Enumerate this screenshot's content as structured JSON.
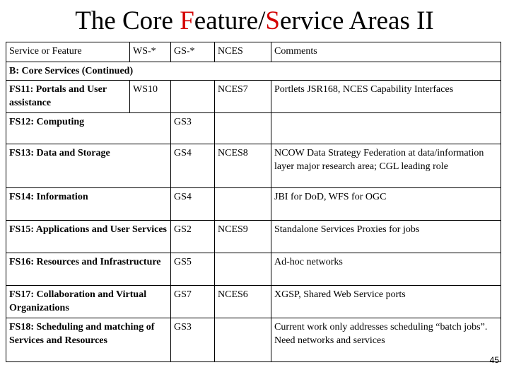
{
  "title": {
    "part1": "The Core ",
    "part2": "F",
    "part3": "eature/",
    "part4": "S",
    "part5": "ervice Areas II"
  },
  "header": {
    "service": "Service or Feature",
    "ws": "WS-*",
    "gs": "GS-*",
    "nces": "NCES",
    "comments": "Comments"
  },
  "section": "B: Core Services (Continued)",
  "rows": [
    {
      "feature": "FS11: Portals and User assistance",
      "ws": "WS10",
      "gs": "",
      "nces": "NCES7",
      "comments": "Portlets JSR168, NCES Capability Interfaces"
    },
    {
      "feature": "FS12: Computing",
      "ws": "",
      "gs": "GS3",
      "nces": "",
      "comments": ""
    },
    {
      "feature": "FS13: Data and  Storage",
      "ws": "",
      "gs": "GS4",
      "nces": "NCES8",
      "comments": "NCOW Data Strategy Federation at data/information layer major research area; CGL leading role"
    },
    {
      "feature": "FS14: Information",
      "ws": "",
      "gs": "GS4",
      "nces": "",
      "comments": "JBI for DoD, WFS for OGC"
    },
    {
      "feature": "FS15: Applications and User Services",
      "ws": "",
      "gs": "GS2",
      "nces": "NCES9",
      "comments": "Standalone  Services Proxies for jobs"
    },
    {
      "feature": "FS16: Resources and Infrastructure",
      "ws": "",
      "gs": "GS5",
      "nces": "",
      "comments": "Ad-hoc networks"
    },
    {
      "feature": "FS17: Collaboration and Virtual Organizations",
      "ws": "",
      "gs": "GS7",
      "nces": "NCES6",
      "comments": "XGSP, Shared Web Service ports"
    },
    {
      "feature": "FS18: Scheduling and matching of Services and Resources",
      "ws": "",
      "gs": "GS3",
      "nces": "",
      "comments": "Current work only addresses scheduling “batch jobs”. Need networks and services"
    }
  ],
  "page_number": "45",
  "colors": {
    "accent_red": "#d40000"
  }
}
